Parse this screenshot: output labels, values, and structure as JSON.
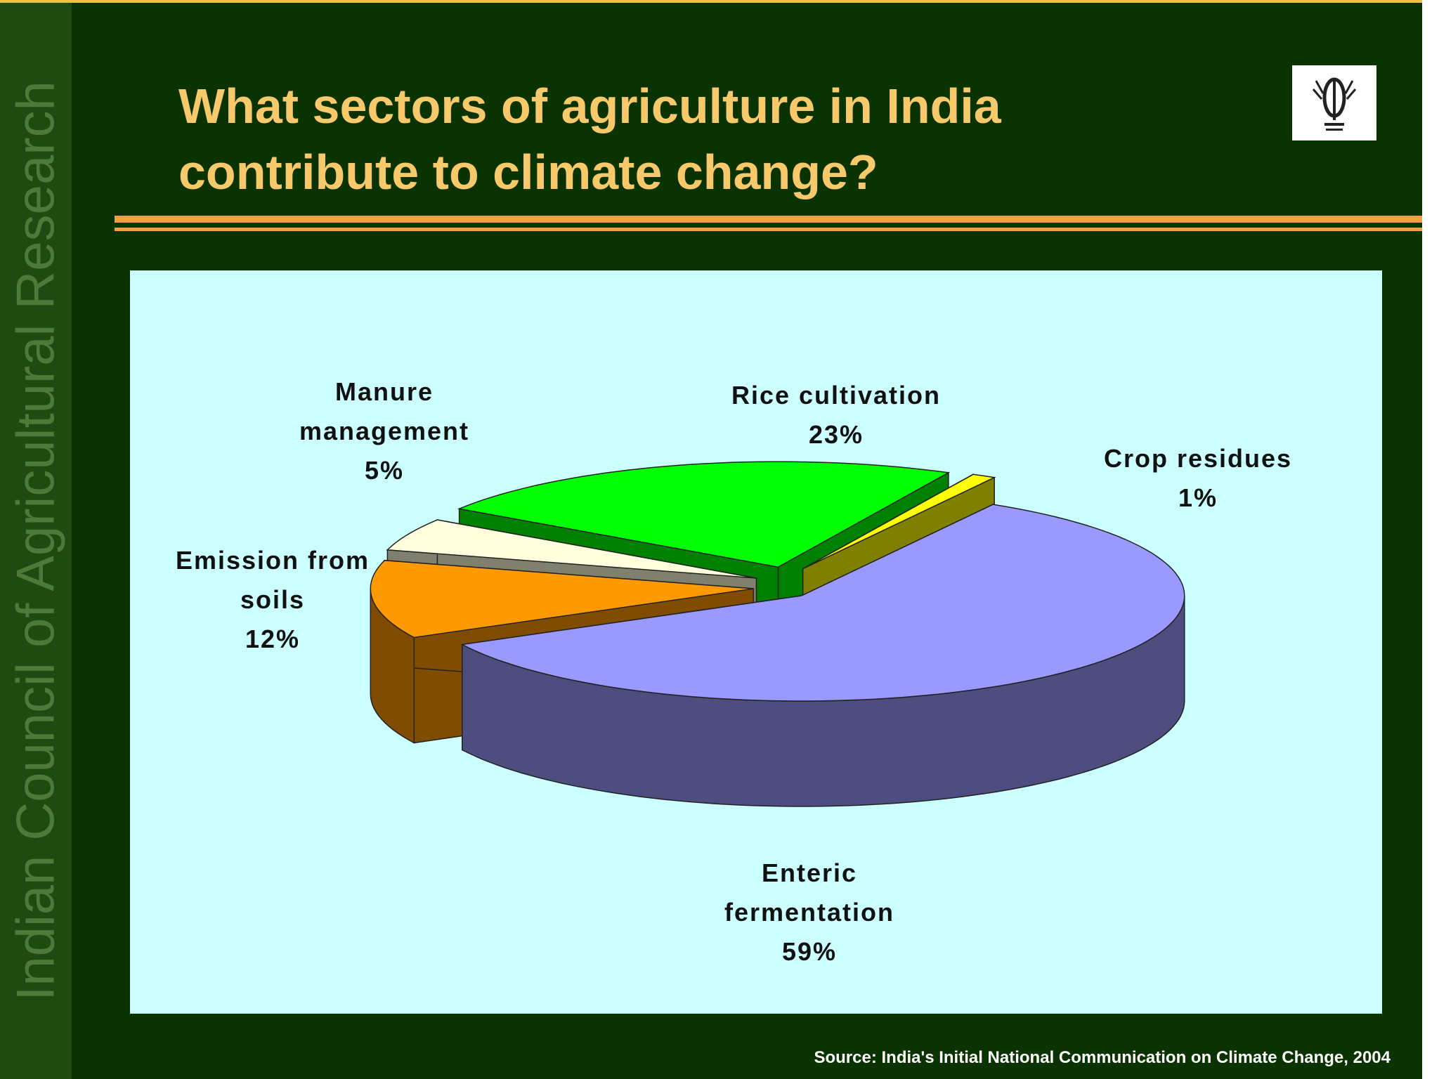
{
  "slide": {
    "title": "What sectors of agriculture in India contribute to climate change?",
    "side_text": "Indian Council of Agricultural Research",
    "source": "Source: India's Initial National Communication on Climate Change, 2004"
  },
  "chart_data": {
    "type": "pie3d",
    "categories": [
      "Rice cultivation",
      "Crop residues",
      "Enteric fermentation",
      "Emission from soils",
      "Manure management"
    ],
    "values": [
      23,
      1,
      59,
      12,
      5
    ],
    "value_labels": [
      "23%",
      "1%",
      "59%",
      "12%",
      "5%"
    ],
    "colors": [
      "#00ff00",
      "#ffff00",
      "#9999ff",
      "#ff9900",
      "#ffffdd"
    ]
  }
}
